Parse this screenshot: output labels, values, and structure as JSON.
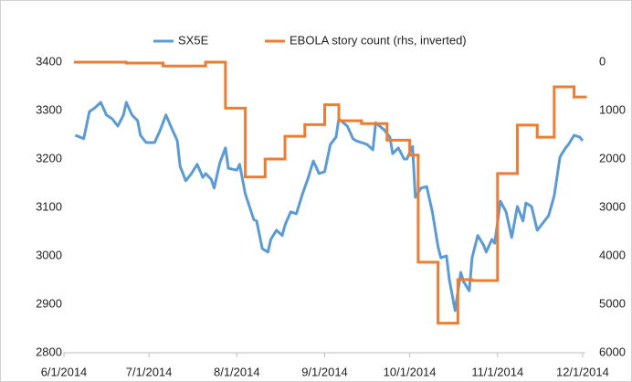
{
  "chart_data": {
    "type": "line",
    "xlim": [
      "6/1/2014",
      "12/2/2014"
    ],
    "xticks": [
      "6/1/2014",
      "7/1/2014",
      "8/1/2014",
      "9/1/2014",
      "10/1/2014",
      "11/1/2014",
      "12/1/2014"
    ],
    "ylim": [
      2800,
      3400
    ],
    "yticks": [
      2800,
      2900,
      3000,
      3100,
      3200,
      3300,
      3400
    ],
    "y2lim": [
      0,
      6000
    ],
    "y2ticks": [
      0,
      1000,
      2000,
      3000,
      4000,
      5000,
      6000
    ],
    "y2_inverted": true,
    "legend": "top",
    "grid": false,
    "series": [
      {
        "name": "SX5E",
        "color": "#5b9bd5",
        "x": [
          "6/5/2014",
          "6/8/2014",
          "6/10/2014",
          "6/12/2014",
          "6/14/2014",
          "6/16/2014",
          "6/18/2014",
          "6/20/2014",
          "6/22/2014",
          "6/23/2014",
          "6/25/2014",
          "6/27/2014",
          "6/28/2014",
          "6/30/2014",
          "7/3/2014",
          "7/5/2014",
          "7/7/2014",
          "7/9/2014",
          "7/11/2014",
          "7/12/2014",
          "7/14/2014",
          "7/16/2014",
          "7/18/2014",
          "7/20/2014",
          "7/21/2014",
          "7/23/2014",
          "7/24/2014",
          "7/26/2014",
          "7/28/2014",
          "7/29/2014",
          "8/1/2014",
          "8/2/2014",
          "8/4/2014",
          "8/7/2014",
          "8/8/2014",
          "8/10/2014",
          "8/12/2014",
          "8/13/2014",
          "8/15/2014",
          "8/17/2014",
          "8/18/2014",
          "8/20/2014",
          "8/22/2014",
          "8/24/2014",
          "8/26/2014",
          "8/28/2014",
          "8/30/2014",
          "9/1/2014",
          "9/3/2014",
          "9/5/2014",
          "9/6/2014",
          "9/9/2014",
          "9/11/2014",
          "9/12/2014",
          "9/14/2014",
          "9/16/2014",
          "9/18/2014",
          "9/19/2014",
          "9/22/2014",
          "9/24/2014",
          "9/25/2014",
          "9/27/2014",
          "9/29/2014",
          "9/30/2014",
          "10/2/2014",
          "10/3/2014",
          "10/5/2014",
          "10/7/2014",
          "10/9/2014",
          "10/11/2014",
          "10/12/2014",
          "10/14/2014",
          "10/15/2014",
          "10/17/2014",
          "10/19/2014",
          "10/20/2014",
          "10/22/2014",
          "10/23/2014",
          "10/25/2014",
          "10/27/2014",
          "10/28/2014",
          "10/30/2014",
          "10/31/2014",
          "11/2/2014",
          "11/4/2014",
          "11/6/2014",
          "11/8/2014",
          "11/10/2014",
          "11/11/2014",
          "11/13/2014",
          "11/15/2014",
          "11/17/2014",
          "11/19/2014",
          "11/21/2014",
          "11/23/2014",
          "11/25/2014",
          "11/26/2014",
          "11/28/2014",
          "11/30/2014",
          "12/1/2014"
        ],
        "values": [
          3249,
          3242,
          3298,
          3306,
          3317,
          3291,
          3283,
          3268,
          3291,
          3317,
          3291,
          3279,
          3249,
          3234,
          3234,
          3260,
          3291,
          3264,
          3238,
          3185,
          3155,
          3170,
          3189,
          3162,
          3170,
          3158,
          3140,
          3192,
          3223,
          3181,
          3177,
          3189,
          3128,
          3075,
          3072,
          3015,
          3008,
          3034,
          3053,
          3042,
          3064,
          3091,
          3087,
          3125,
          3158,
          3196,
          3170,
          3174,
          3230,
          3245,
          3283,
          3268,
          3242,
          3238,
          3234,
          3230,
          3219,
          3275,
          3260,
          3245,
          3211,
          3223,
          3200,
          3200,
          3226,
          3121,
          3140,
          3143,
          3091,
          3019,
          2996,
          3000,
          2951,
          2887,
          2966,
          2947,
          2928,
          2996,
          3042,
          3023,
          3008,
          3034,
          3026,
          3113,
          3091,
          3038,
          3102,
          3072,
          3109,
          3102,
          3053,
          3068,
          3083,
          3125,
          3204,
          3223,
          3230,
          3249,
          3245,
          3238
        ]
      },
      {
        "name": "EBOLA story count (rhs, inverted)",
        "color": "#ed7d31",
        "axis": "y2",
        "step": true,
        "x": [
          "6/5/2014",
          "6/23/2014",
          "7/6/2014",
          "7/21/2014",
          "7/28/2014",
          "8/4/2014",
          "8/11/2014",
          "8/18/2014",
          "8/25/2014",
          "9/1/2014",
          "9/6/2014",
          "9/14/2014",
          "9/23/2014",
          "10/1/2014",
          "10/4/2014",
          "10/11/2014",
          "10/18/2014",
          "10/23/2014",
          "11/1/2014",
          "11/8/2014",
          "11/15/2014",
          "11/21/2014",
          "11/28/2014"
        ],
        "values": [
          0,
          20,
          80,
          0,
          950,
          2370,
          2000,
          1530,
          1290,
          880,
          1210,
          1270,
          1610,
          1920,
          4130,
          5390,
          4490,
          4510,
          2300,
          1300,
          1550,
          510,
          720
        ]
      }
    ]
  }
}
